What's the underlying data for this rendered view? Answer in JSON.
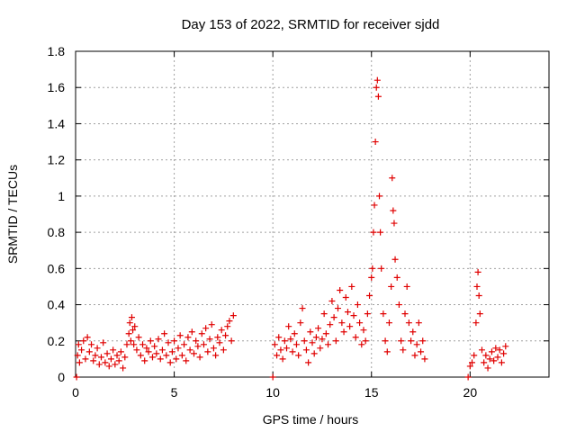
{
  "chart_data": {
    "type": "scatter",
    "title": "Day 153 of 2022, SRMTID for receiver sjdd",
    "xlabel": "GPS time / hours",
    "ylabel": "SRMTID / TECUs",
    "xlim": [
      0,
      24
    ],
    "ylim": [
      0,
      1.8
    ],
    "xticks": [
      0,
      5,
      10,
      15,
      20
    ],
    "yticks": [
      0,
      0.2,
      0.4,
      0.6,
      0.8,
      1,
      1.2,
      1.4,
      1.6,
      1.8
    ],
    "ytick_labels": [
      "0",
      "0.2",
      "0.4",
      "0.6",
      "0.8",
      "1",
      "1.2",
      "1.4",
      "1.6",
      "1.8"
    ],
    "grid": true,
    "marker": "+",
    "color": "#e00000",
    "series": [
      {
        "name": "sjdd",
        "x": [
          0.05,
          0.1,
          0.15,
          0.2,
          0.3,
          0.4,
          0.5,
          0.6,
          0.7,
          0.8,
          0.9,
          1.0,
          1.1,
          1.2,
          1.3,
          1.4,
          1.5,
          1.6,
          1.7,
          1.8,
          1.9,
          2.0,
          2.1,
          2.2,
          2.3,
          2.4,
          2.5,
          2.6,
          2.7,
          2.75,
          2.8,
          2.85,
          2.9,
          2.95,
          3.0,
          3.1,
          3.2,
          3.3,
          3.4,
          3.5,
          3.6,
          3.7,
          3.8,
          3.9,
          4.0,
          4.1,
          4.2,
          4.3,
          4.4,
          4.5,
          4.6,
          4.7,
          4.8,
          4.9,
          5.0,
          5.1,
          5.2,
          5.3,
          5.4,
          5.5,
          5.6,
          5.7,
          5.8,
          5.9,
          6.0,
          6.1,
          6.2,
          6.3,
          6.4,
          6.5,
          6.6,
          6.7,
          6.8,
          6.9,
          7.0,
          7.1,
          7.2,
          7.3,
          7.4,
          7.5,
          7.6,
          7.7,
          7.8,
          7.9,
          8.0,
          10.0,
          10.1,
          10.2,
          10.3,
          10.4,
          10.5,
          10.6,
          10.7,
          10.8,
          10.9,
          11.0,
          11.1,
          11.2,
          11.3,
          11.4,
          11.5,
          11.6,
          11.7,
          11.8,
          11.9,
          12.0,
          12.1,
          12.2,
          12.3,
          12.4,
          12.5,
          12.6,
          12.7,
          12.8,
          12.9,
          13.0,
          13.1,
          13.2,
          13.3,
          13.4,
          13.5,
          13.6,
          13.7,
          13.8,
          13.9,
          14.0,
          14.1,
          14.2,
          14.3,
          14.4,
          14.5,
          14.6,
          14.7,
          14.8,
          14.9,
          15.0,
          15.05,
          15.1,
          15.15,
          15.2,
          15.25,
          15.3,
          15.35,
          15.4,
          15.45,
          15.5,
          15.6,
          15.7,
          15.8,
          15.9,
          16.0,
          16.05,
          16.1,
          16.15,
          16.2,
          16.3,
          16.4,
          16.5,
          16.6,
          16.7,
          16.8,
          16.9,
          17.0,
          17.1,
          17.2,
          17.3,
          17.4,
          17.5,
          17.6,
          17.7,
          19.9,
          20.0,
          20.1,
          20.2,
          20.3,
          20.35,
          20.4,
          20.45,
          20.5,
          20.6,
          20.7,
          20.8,
          20.9,
          21.0,
          21.1,
          21.2,
          21.3,
          21.4,
          21.5,
          21.6,
          21.7,
          21.8
        ],
        "y": [
          0.0,
          0.12,
          0.18,
          0.08,
          0.15,
          0.2,
          0.1,
          0.22,
          0.14,
          0.18,
          0.09,
          0.12,
          0.16,
          0.07,
          0.11,
          0.19,
          0.08,
          0.13,
          0.06,
          0.1,
          0.15,
          0.07,
          0.12,
          0.09,
          0.14,
          0.05,
          0.11,
          0.18,
          0.24,
          0.3,
          0.2,
          0.33,
          0.26,
          0.18,
          0.28,
          0.15,
          0.22,
          0.12,
          0.18,
          0.09,
          0.16,
          0.14,
          0.2,
          0.11,
          0.17,
          0.13,
          0.21,
          0.1,
          0.15,
          0.24,
          0.12,
          0.19,
          0.08,
          0.14,
          0.2,
          0.1,
          0.16,
          0.23,
          0.12,
          0.18,
          0.09,
          0.22,
          0.15,
          0.25,
          0.13,
          0.2,
          0.17,
          0.11,
          0.24,
          0.18,
          0.27,
          0.14,
          0.21,
          0.29,
          0.16,
          0.12,
          0.22,
          0.19,
          0.26,
          0.15,
          0.23,
          0.28,
          0.31,
          0.2,
          0.34,
          0.0,
          0.18,
          0.12,
          0.22,
          0.15,
          0.1,
          0.2,
          0.16,
          0.28,
          0.21,
          0.14,
          0.24,
          0.18,
          0.12,
          0.3,
          0.38,
          0.2,
          0.15,
          0.08,
          0.25,
          0.19,
          0.13,
          0.22,
          0.27,
          0.16,
          0.21,
          0.35,
          0.24,
          0.18,
          0.29,
          0.42,
          0.33,
          0.2,
          0.38,
          0.48,
          0.3,
          0.25,
          0.44,
          0.36,
          0.28,
          0.5,
          0.34,
          0.22,
          0.4,
          0.3,
          0.18,
          0.26,
          0.2,
          0.35,
          0.45,
          0.55,
          0.6,
          0.8,
          0.95,
          1.3,
          1.6,
          1.64,
          1.55,
          1.0,
          0.8,
          0.6,
          0.35,
          0.2,
          0.14,
          0.3,
          0.5,
          1.1,
          0.92,
          0.85,
          0.65,
          0.55,
          0.4,
          0.2,
          0.15,
          0.35,
          0.5,
          0.3,
          0.2,
          0.25,
          0.12,
          0.18,
          0.3,
          0.14,
          0.2,
          0.1,
          0.0,
          0.06,
          0.08,
          0.12,
          0.3,
          0.5,
          0.58,
          0.45,
          0.35,
          0.15,
          0.08,
          0.12,
          0.05,
          0.1,
          0.14,
          0.09,
          0.16,
          0.11,
          0.15,
          0.08,
          0.13,
          0.17
        ]
      }
    ]
  }
}
